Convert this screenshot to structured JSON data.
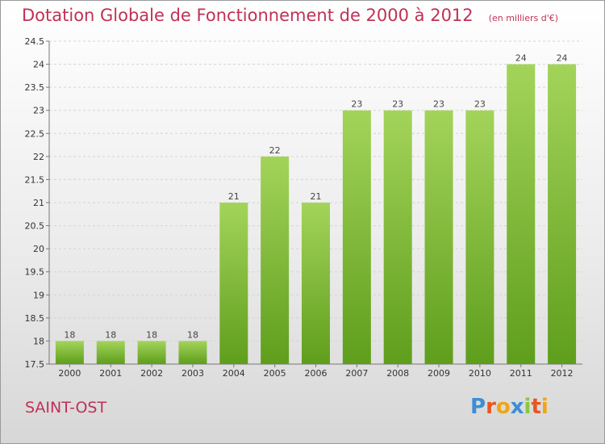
{
  "header": {
    "title": "Dotation Globale de Fonctionnement de 2000 à 2012",
    "unit": "(en milliers d'€)"
  },
  "footer": {
    "commune": "SAINT-OST",
    "logo_letters": [
      "P",
      "r",
      "o",
      "x",
      "i",
      "t",
      "i"
    ],
    "logo_colors": [
      "#3b8ed6",
      "#e8561f",
      "#f0a517",
      "#3b8ed6",
      "#8cc63f",
      "#e8561f",
      "#f0a517"
    ]
  },
  "chart_data": {
    "type": "bar",
    "title": "Dotation Globale de Fonctionnement de 2000 à 2012",
    "subtitle": "(en milliers d'€)",
    "categories": [
      "2000",
      "2001",
      "2002",
      "2003",
      "2004",
      "2005",
      "2006",
      "2007",
      "2008",
      "2009",
      "2010",
      "2011",
      "2012"
    ],
    "values": [
      18,
      18,
      18,
      18,
      21,
      22,
      21,
      23,
      23,
      23,
      23,
      24,
      24
    ],
    "data_labels": [
      "18",
      "18",
      "18",
      "18",
      "21",
      "22",
      "21",
      "23",
      "23",
      "23",
      "23",
      "24",
      "24"
    ],
    "ylim": [
      17.5,
      24.5
    ],
    "yticks": [
      17.5,
      18,
      18.5,
      19,
      19.5,
      20,
      20.5,
      21,
      21.5,
      22,
      22.5,
      23,
      23.5,
      24,
      24.5
    ],
    "ytick_labels": [
      "17.5",
      "18",
      "18.5",
      "19",
      "19.5",
      "20",
      "20.5",
      "21",
      "21.5",
      "22",
      "22.5",
      "23",
      "23.5",
      "24",
      "24.5"
    ],
    "xlabel": "",
    "ylabel": "",
    "grid": "horizontal dashed",
    "colors": {
      "bar_top": "#a3d45a",
      "bar_bottom": "#5f9e1c",
      "axis": "#777777",
      "grid": "#d4d4d4"
    }
  }
}
